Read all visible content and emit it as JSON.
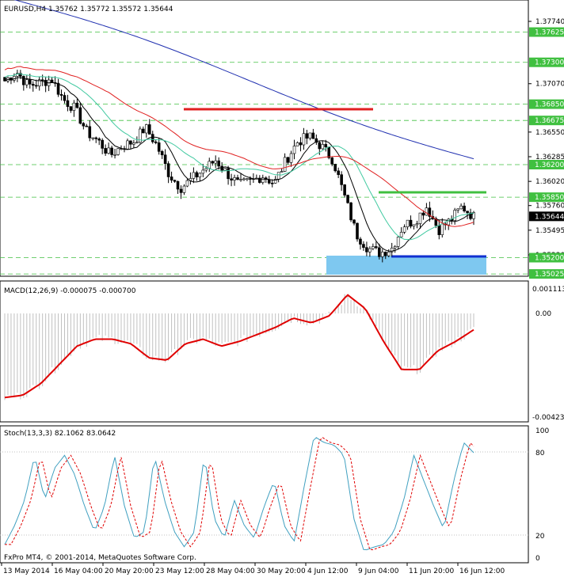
{
  "header": {
    "symbol_tf": "EURUSD,H4",
    "ohlc": "1.35762 1.35772 1.35572 1.35644"
  },
  "macd": {
    "label": "MACD(12,26,9) -0.000075 -0.000700",
    "scale_top": "0.001113",
    "scale_zero": "0.00",
    "scale_bottom": "-0.004239"
  },
  "stoch": {
    "label": "Stoch(13,3,3) 82.1062 83.0642",
    "levels": [
      "100",
      "80",
      "20",
      "0"
    ]
  },
  "watermark": "FxPro MT4, © 2001-2014, MetaQuotes Software Corp.",
  "price_axis": {
    "plain_ticks": [
      "1.37740",
      "1.37070",
      "1.36550",
      "1.36285",
      "1.36020",
      "1.35760",
      "1.35495",
      "1.35230"
    ],
    "marked_levels": [
      "1.37625",
      "1.37300",
      "1.36850",
      "1.36675",
      "1.36200",
      "1.35850",
      "1.35200",
      "1.35025"
    ],
    "current_price": "1.35644"
  },
  "time_axis": [
    "13 May 2014",
    "16 May 04:00",
    "20 May 20:00",
    "23 May 12:00",
    "28 May 04:00",
    "30 May 20:00",
    "4 Jun 12:00",
    "9 Jun 04:00",
    "11 Jun 20:00",
    "16 Jun 12:00"
  ],
  "colors": {
    "sma_fast": "#000000",
    "sma_mid": "#40c9a0",
    "sma_slow": "#e02020",
    "sma_long": "#2030b0",
    "resistance": "#e02020",
    "support_line": "#40c040",
    "support_zone": "#7ec8f0",
    "support_edge": "#1030d0",
    "level_marker": "#40c040",
    "macd_signal": "#e00000",
    "histogram": "#c0c0c0",
    "stoch_main": "#40a0c0",
    "stoch_signal": "#e00000"
  },
  "chart_data": [
    {
      "type": "candlestick",
      "title": "EURUSD,H4",
      "ylim": [
        1.3497,
        1.3779
      ],
      "x": [
        "13 May 2014",
        "16 May 04:00",
        "20 May 20:00",
        "23 May 12:00",
        "28 May 04:00",
        "30 May 20:00",
        "4 Jun 12:00",
        "9 Jun 04:00",
        "11 Jun 20:00",
        "16 Jun 12:00"
      ],
      "close_path": [
        1.371,
        1.372,
        1.3705,
        1.3708,
        1.3712,
        1.369,
        1.368,
        1.3655,
        1.3645,
        1.363,
        1.364,
        1.3645,
        1.366,
        1.364,
        1.361,
        1.3595,
        1.3605,
        1.3615,
        1.3625,
        1.361,
        1.3598,
        1.3602,
        1.3608,
        1.36,
        1.3625,
        1.3645,
        1.365,
        1.364,
        1.3625,
        1.3585,
        1.3545,
        1.353,
        1.3525,
        1.353,
        1.3555,
        1.356,
        1.3575,
        1.355,
        1.356,
        1.3575,
        1.3564
      ],
      "overlays": [
        "SMA fast",
        "SMA mid",
        "SMA slow",
        "SMA long"
      ],
      "horizontal_levels": [
        1.3667,
        1.3585,
        1.352
      ]
    },
    {
      "type": "bar",
      "title": "MACD(12,26,9) -0.000075 -0.000700",
      "ylim": [
        -0.004239,
        0.001113
      ],
      "signal_path": [
        -0.0036,
        -0.0035,
        -0.003,
        -0.0022,
        -0.0014,
        -0.0011,
        -0.0011,
        -0.0013,
        -0.0019,
        -0.002,
        -0.0013,
        -0.0011,
        -0.0014,
        -0.0012,
        -0.0009,
        -0.0006,
        -0.0002,
        -0.0004,
        -0.0001,
        0.0008,
        0.0002,
        -0.0012,
        -0.0024,
        -0.0024,
        -0.0016,
        -0.0012,
        -0.0007
      ]
    },
    {
      "type": "line",
      "title": "Stoch(13,3,3) 82.1062 83.0642",
      "ylim": [
        0,
        100
      ],
      "levels": [
        80,
        20
      ],
      "main_path": [
        10,
        25,
        45,
        80,
        45,
        70,
        80,
        65,
        40,
        20,
        40,
        80,
        40,
        15,
        20,
        80,
        45,
        20,
        8,
        20,
        80,
        30,
        15,
        45,
        25,
        15,
        40,
        60,
        25,
        12,
        55,
        95,
        90,
        88,
        80,
        30,
        5,
        8,
        10,
        20,
        45,
        80,
        60,
        40,
        22,
        60,
        90,
        82
      ]
    }
  ]
}
